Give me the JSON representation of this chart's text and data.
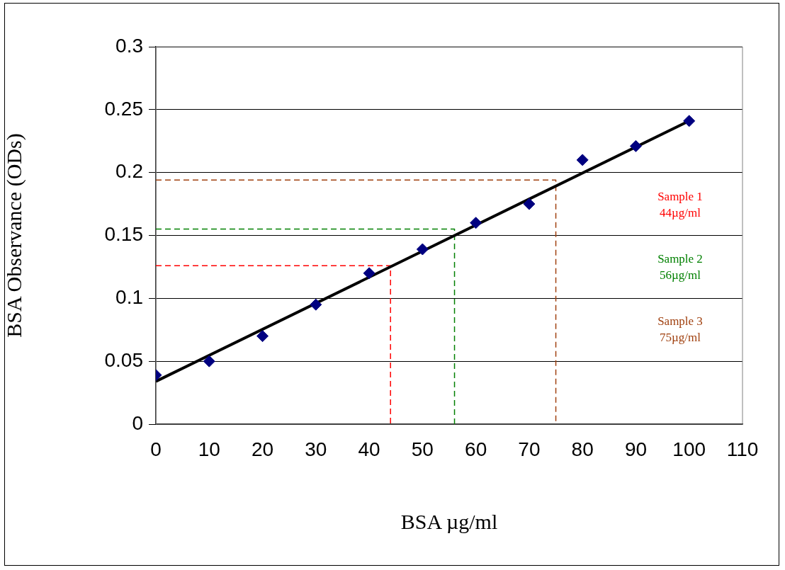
{
  "chart_data": {
    "type": "scatter",
    "xlabel": "BSA µg/ml",
    "ylabel": "BSA Observance (ODs)",
    "xlim": [
      0,
      110
    ],
    "xticks": [
      0,
      10,
      20,
      30,
      40,
      50,
      60,
      70,
      80,
      90,
      100,
      110
    ],
    "ylim": [
      0,
      0.3
    ],
    "yticks": [
      0,
      0.05,
      0.1,
      0.15,
      0.2,
      0.25,
      0.3
    ],
    "grid": "y",
    "legend": false,
    "x": [
      0,
      10,
      20,
      30,
      40,
      50,
      60,
      70,
      80,
      90,
      100
    ],
    "series": [
      {
        "type": "scatter",
        "marker": "diamond",
        "color": "#000080",
        "values": [
          0.039,
          0.05,
          0.07,
          0.095,
          0.12,
          0.139,
          0.16,
          0.175,
          0.21,
          0.221,
          0.241
        ]
      },
      {
        "type": "line",
        "color": "#000000",
        "x": [
          0,
          100
        ],
        "values": [
          0.034,
          0.241
        ]
      },
      {
        "type": "line",
        "line_style": "dashed",
        "color": "#ff0000",
        "x": [
          0,
          44,
          44
        ],
        "values": [
          0.126,
          0.126,
          0
        ]
      },
      {
        "type": "line",
        "line_style": "dashed",
        "color": "#008000",
        "x": [
          0,
          56,
          56
        ],
        "values": [
          0.155,
          0.155,
          0
        ]
      },
      {
        "type": "line",
        "line_style": "dashed",
        "color": "#a0400f",
        "x": [
          0,
          75,
          75
        ],
        "values": [
          0.194,
          0.194,
          0
        ]
      }
    ],
    "annotations": [
      "Sample 1\n44µg/ml",
      "Sample 2\n56µg/ml",
      "Sample 3\n75µg/ml"
    ]
  }
}
